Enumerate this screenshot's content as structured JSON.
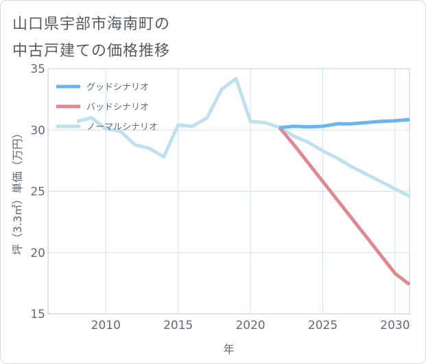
{
  "title_line1": "山口県宇部市海南町の",
  "title_line2": "中古戸建ての価格推移",
  "chart_data": {
    "type": "line",
    "xlabel": "年",
    "ylabel": "坪（3.3㎡）単価（万円）",
    "xlim": [
      2006,
      2031
    ],
    "ylim": [
      15,
      35
    ],
    "xticks": [
      2010,
      2015,
      2020,
      2025,
      2030
    ],
    "yticks": [
      15,
      20,
      25,
      30,
      35
    ],
    "grid": true,
    "legend_position": "top-left",
    "series": [
      {
        "name": "グッドシナリオ",
        "color": "#6cb4ec",
        "x": [
          2022,
          2023,
          2024,
          2025,
          2026,
          2027,
          2028,
          2029,
          2030,
          2031
        ],
        "values": [
          30.2,
          30.3,
          30.25,
          30.3,
          30.5,
          30.5,
          30.6,
          30.7,
          30.75,
          30.85
        ]
      },
      {
        "name": "バッドシナリオ",
        "color": "#e0878f",
        "x": [
          2022,
          2023,
          2024,
          2025,
          2026,
          2027,
          2028,
          2029,
          2030,
          2031
        ],
        "values": [
          30.2,
          28.8,
          27.3,
          25.8,
          24.3,
          22.8,
          21.3,
          19.8,
          18.3,
          17.4
        ]
      },
      {
        "name": "ノーマルシナリオ",
        "color": "#bfe1ef",
        "x": [
          2008,
          2009,
          2010,
          2011,
          2012,
          2013,
          2014,
          2015,
          2016,
          2017,
          2018,
          2019,
          2020,
          2021,
          2022,
          2023,
          2024,
          2025,
          2026,
          2027,
          2028,
          2029,
          2030,
          2031
        ],
        "values": [
          30.7,
          31.0,
          30.1,
          29.9,
          28.8,
          28.5,
          27.8,
          30.4,
          30.3,
          31.0,
          33.3,
          34.2,
          30.7,
          30.6,
          30.2,
          29.5,
          29.0,
          28.3,
          27.7,
          27.0,
          26.4,
          25.8,
          25.2,
          24.6
        ]
      }
    ]
  }
}
